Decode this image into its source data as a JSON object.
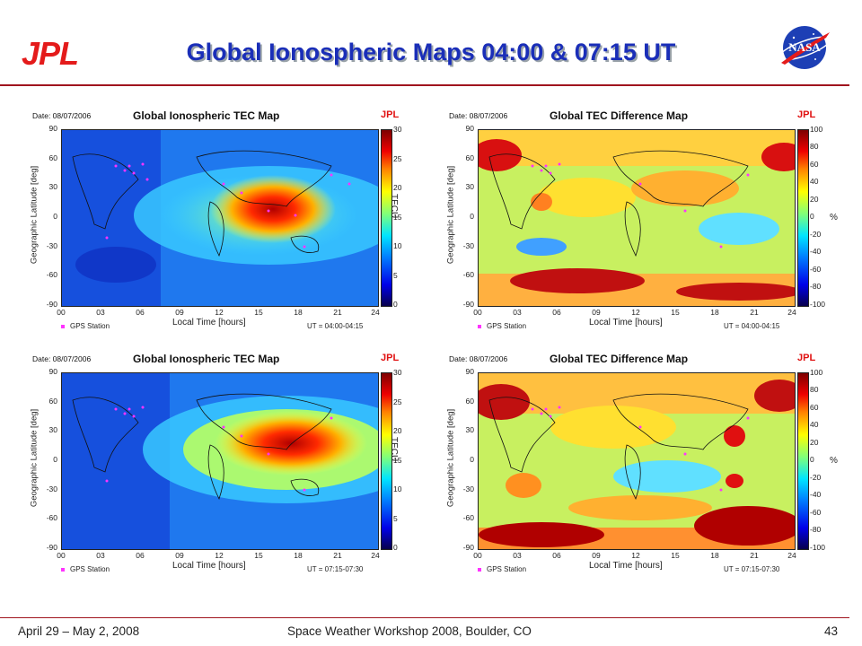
{
  "header": {
    "title": "Global Ionospheric Maps 04:00 & 07:15 UT",
    "jpl_logo": "JPL",
    "nasa_logo": "NASA"
  },
  "panels": [
    {
      "date": "Date: 08/07/2006",
      "title": "Global Ionospheric TEC Map",
      "mark": "JPL",
      "ylabel": "Geographic Latitude [deg]",
      "xlabel": "Local Time [hours]",
      "legend": "GPS Station",
      "ut": "UT = 04:00-04:15",
      "unit": "TECU",
      "cticks": [
        "30",
        "25",
        "20",
        "15",
        "10",
        "5",
        "0"
      ]
    },
    {
      "date": "Date: 08/07/2006",
      "title": "Global TEC Difference Map",
      "mark": "JPL",
      "ylabel": "Geographic Latitude [deg]",
      "xlabel": "Local Time [hours]",
      "legend": "GPS Station",
      "ut": "UT = 04:00-04:15",
      "unit": "%",
      "cticks": [
        "100",
        "80",
        "60",
        "40",
        "20",
        "0",
        "-20",
        "-40",
        "-60",
        "-80",
        "-100"
      ]
    },
    {
      "date": "Date: 08/07/2006",
      "title": "Global Ionospheric TEC Map",
      "mark": "JPL",
      "ylabel": "Geographic Latitude [deg]",
      "xlabel": "Local Time [hours]",
      "legend": "GPS Station",
      "ut": "UT = 07:15-07:30",
      "unit": "TECU",
      "cticks": [
        "30",
        "25",
        "20",
        "15",
        "10",
        "5",
        "0"
      ]
    },
    {
      "date": "Date: 08/07/2006",
      "title": "Global TEC Difference Map",
      "mark": "JPL",
      "ylabel": "Geographic Latitude [deg]",
      "xlabel": "Local Time [hours]",
      "legend": "GPS Station",
      "ut": "UT = 07:15-07:30",
      "unit": "%",
      "cticks": [
        "100",
        "80",
        "60",
        "40",
        "20",
        "0",
        "-20",
        "-40",
        "-60",
        "-80",
        "-100"
      ]
    }
  ],
  "yticks": [
    "90",
    "60",
    "30",
    "0",
    "-30",
    "-60",
    "-90"
  ],
  "xticks": [
    "00",
    "03",
    "06",
    "09",
    "12",
    "15",
    "18",
    "21",
    "24"
  ],
  "footer": {
    "dates": "April 29 – May 2, 2008",
    "event": "Space Weather Workshop 2008, Boulder, CO",
    "page": "43"
  }
}
